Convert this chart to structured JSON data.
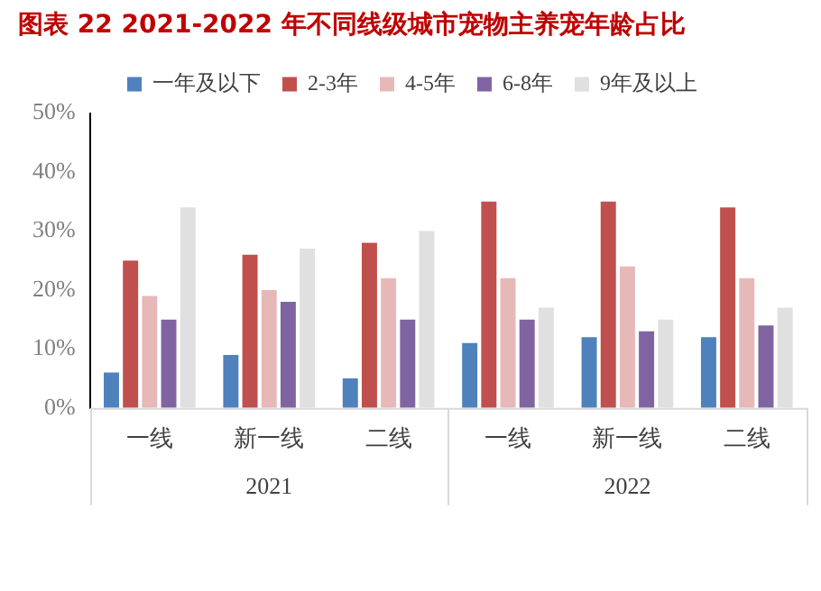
{
  "chart_data": {
    "type": "bar",
    "title": "图表 22 2021-2022 年不同线级城市宠物主养宠年龄占比",
    "categories": [
      "一线",
      "新一线",
      "二线",
      "一线",
      "新一线",
      "二线"
    ],
    "annotations": [
      "2021",
      "2022"
    ],
    "series": [
      {
        "name": "一年及以下",
        "color": "#4f81bd",
        "values": [
          6,
          9,
          5,
          11,
          12,
          12
        ]
      },
      {
        "name": "2-3年",
        "color": "#c0504d",
        "values": [
          25,
          26,
          28,
          35,
          35,
          34
        ]
      },
      {
        "name": "4-5年",
        "color": "#e6b9b8",
        "values": [
          19,
          20,
          22,
          22,
          24,
          22
        ]
      },
      {
        "name": "6-8年",
        "color": "#8064a2",
        "values": [
          15,
          18,
          15,
          15,
          13,
          14
        ]
      },
      {
        "name": "9年及以上",
        "color": "#e0e0e0",
        "values": [
          34,
          27,
          30,
          17,
          15,
          17
        ]
      }
    ],
    "ylim": [
      0,
      50
    ],
    "yticks": [
      {
        "value": 0,
        "label": "0%"
      },
      {
        "value": 10,
        "label": "10%"
      },
      {
        "value": 20,
        "label": "20%"
      },
      {
        "value": 30,
        "label": "30%"
      },
      {
        "value": 40,
        "label": "40%"
      },
      {
        "value": 50,
        "label": "50%"
      }
    ],
    "grid": false,
    "legend": "top"
  }
}
